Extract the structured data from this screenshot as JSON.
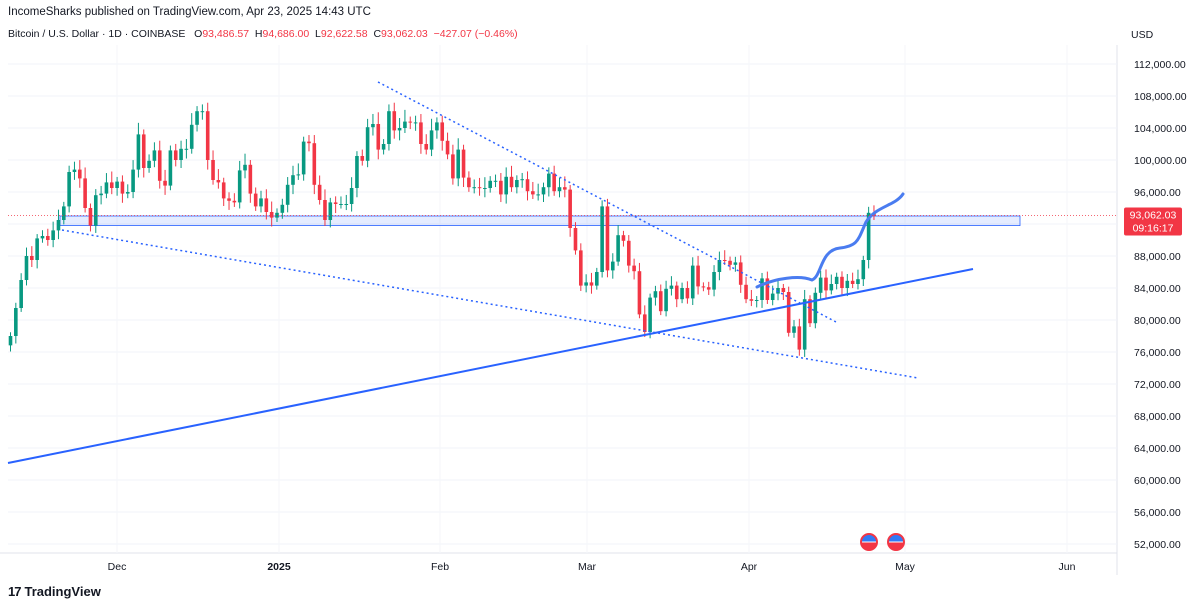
{
  "header": {
    "published": "IncomeSharks published on TradingView.com, Apr 23, 2025 14:43 UTC"
  },
  "ohlc": {
    "symbol": "Bitcoin / U.S. Dollar · 1D · COINBASE",
    "o_label": "O",
    "o": "93,486.57",
    "h_label": "H",
    "h": "94,686.00",
    "l_label": "L",
    "l": "92,622.58",
    "c_label": "C",
    "c": "93,062.03",
    "change": "−427.07 (−0.46%)"
  },
  "currency": "USD",
  "price_tag": {
    "price": "93,062.03",
    "countdown": "09:16:17"
  },
  "brand": {
    "logo": "17",
    "name": "TradingView"
  },
  "colors": {
    "up": "#089981",
    "down": "#f23645",
    "line": "#2962ff",
    "projection": "#4a7cf0",
    "zone": "#cfd8ff"
  },
  "icons": [
    "us-flag-icon",
    "us-flag-icon",
    "us-flag-icon"
  ],
  "chart_data": {
    "type": "candlestick",
    "title": "Bitcoin / U.S. Dollar · 1D · COINBASE",
    "y_ticks": [
      52000,
      56000,
      60000,
      64000,
      68000,
      72000,
      76000,
      80000,
      84000,
      88000,
      92000,
      96000,
      100000,
      104000,
      108000,
      112000
    ],
    "y_tick_labels": [
      "52,000.00",
      "56,000.00",
      "60,000.00",
      "64,000.00",
      "68,000.00",
      "72,000.00",
      "76,000.00",
      "80,000.00",
      "84,000.00",
      "88,000.00",
      "92,000.00",
      "96,000.00",
      "100,000.00",
      "104,000.00",
      "108,000.00",
      "112,000.00"
    ],
    "ylim": [
      50000,
      115000
    ],
    "x_ticks": [
      "Dec",
      "2025",
      "Feb",
      "Mar",
      "Apr",
      "May",
      "Jun"
    ],
    "candles_weekly_summary": [
      {
        "start": "2024-11-11",
        "values": [
          78000,
          81500,
          85000,
          88000,
          87500,
          90200,
          90500
        ]
      },
      {
        "start": "2024-11-18",
        "values": [
          90000,
          91200,
          92500,
          94200,
          98500,
          98800,
          97700
        ]
      },
      {
        "start": "2024-11-25",
        "values": [
          94000,
          91800,
          95600,
          95800,
          97200,
          96500,
          97300
        ]
      },
      {
        "start": "2024-12-02",
        "values": [
          95800,
          96000,
          98800,
          103200,
          99000,
          99900,
          101200
        ]
      },
      {
        "start": "2024-12-09",
        "values": [
          97400,
          96800,
          101200,
          100000,
          101400,
          101400,
          104400
        ]
      },
      {
        "start": "2024-12-16",
        "values": [
          106100,
          106100,
          100000,
          97500,
          97200,
          95200,
          94900
        ]
      },
      {
        "start": "2024-12-23",
        "values": [
          94700,
          98700,
          99400,
          95800,
          94200,
          95200,
          93500
        ]
      },
      {
        "start": "2024-12-30",
        "values": [
          92800,
          93400,
          94400,
          96900,
          98100,
          98200,
          102300
        ]
      },
      {
        "start": "2025-01-06",
        "values": [
          102100,
          96900,
          95000,
          92500,
          94700,
          94500,
          94500
        ]
      },
      {
        "start": "2025-01-13",
        "values": [
          94500,
          96500,
          100500,
          99900,
          104100,
          104500,
          101300
        ]
      },
      {
        "start": "2025-01-20",
        "values": [
          102000,
          106100,
          103700,
          104000,
          104800,
          104700,
          104700
        ]
      },
      {
        "start": "2025-01-27",
        "values": [
          102000,
          101300,
          103700,
          104700,
          102400,
          100700,
          97700
        ]
      },
      {
        "start": "2025-02-03",
        "values": [
          101300,
          97800,
          96600,
          96600,
          96500,
          96500,
          97400
        ]
      },
      {
        "start": "2025-02-10",
        "values": [
          97400,
          95700,
          97900,
          96600,
          97500,
          97600,
          96100
        ]
      },
      {
        "start": "2025-02-17",
        "values": [
          95700,
          95700,
          96600,
          98300,
          96100,
          96600,
          96300
        ]
      },
      {
        "start": "2025-02-24",
        "values": [
          91500,
          88700,
          84300,
          84700,
          84300,
          86000,
          94200
        ]
      },
      {
        "start": "2025-03-03",
        "values": [
          86200,
          87300,
          90600,
          89900,
          86800,
          86100,
          80700
        ]
      },
      {
        "start": "2025-03-10",
        "values": [
          78500,
          82800,
          83600,
          81100,
          83900,
          84300,
          82600
        ]
      },
      {
        "start": "2025-03-17",
        "values": [
          84000,
          82700,
          86800,
          84200,
          84100,
          83800,
          86000
        ]
      },
      {
        "start": "2025-03-24",
        "values": [
          87500,
          87400,
          86900,
          87200,
          84400,
          82600,
          82400
        ]
      },
      {
        "start": "2025-03-31",
        "values": [
          82500,
          85200,
          82500,
          83300,
          84000,
          83500,
          78400
        ]
      },
      {
        "start": "2025-04-07",
        "values": [
          79200,
          76300,
          82600,
          79600,
          83400,
          85300,
          83700
        ]
      },
      {
        "start": "2025-04-14",
        "values": [
          84500,
          85400,
          84000,
          84900,
          84500,
          85100,
          87500
        ]
      },
      {
        "start": "2025-04-21",
        "values": [
          93400,
          93062
        ]
      }
    ],
    "annotations": {
      "support_zone": [
        91800,
        93000
      ],
      "rising_trendline": "solid blue",
      "descending_wedge_lines": "dotted blue",
      "projection_path": "solid blue curve"
    }
  }
}
